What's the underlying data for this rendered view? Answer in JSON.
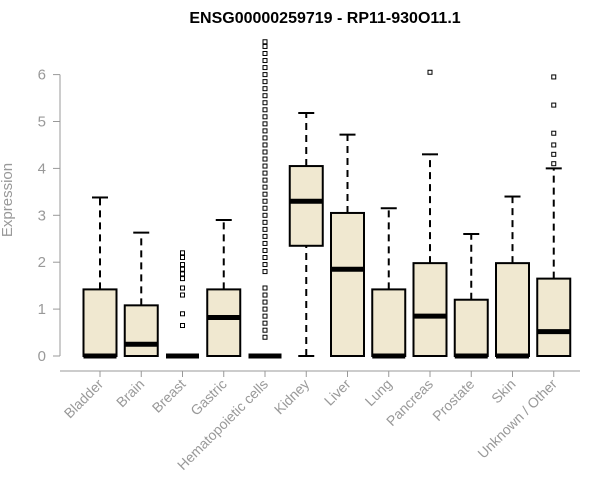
{
  "chart_data": {
    "type": "boxplot",
    "title": "ENSG00000259719 - RP11-930O11.1",
    "xlabel": "",
    "ylabel": "Expression",
    "ylim": [
      0,
      6.5
    ],
    "yticks": [
      0,
      1,
      2,
      3,
      4,
      5,
      6
    ],
    "grid": false,
    "legend": "none",
    "box_fill": "#f0e8d0",
    "box_stroke": "#000000",
    "axis_color": "#999999",
    "categories": [
      "Bladder",
      "Brain",
      "Breast",
      "Gastric",
      "Hematopoietic cells",
      "Kidney",
      "Liver",
      "Lung",
      "Pancreas",
      "Prostate",
      "Skin",
      "Unknown / Other"
    ],
    "boxes": [
      {
        "whisker_low": 0,
        "q1": 0,
        "median": 0,
        "q3": 1.42,
        "whisker_high": 3.38,
        "outliers": []
      },
      {
        "whisker_low": 0,
        "q1": 0,
        "median": 0.25,
        "q3": 1.08,
        "whisker_high": 2.63,
        "outliers": []
      },
      {
        "whisker_low": 0,
        "q1": 0,
        "median": 0,
        "q3": 0,
        "whisker_high": 0,
        "outliers": [
          0.65,
          0.9,
          1.3,
          1.45,
          1.65,
          1.75,
          1.85,
          1.95,
          2.1,
          2.2
        ]
      },
      {
        "whisker_low": 0,
        "q1": 0,
        "median": 0.82,
        "q3": 1.42,
        "whisker_high": 2.9,
        "outliers": []
      },
      {
        "whisker_low": 0,
        "q1": 0,
        "median": 0,
        "q3": 0,
        "whisker_high": 0,
        "outliers": [
          0.4,
          0.55,
          0.7,
          0.85,
          1.0,
          1.15,
          1.3,
          1.45,
          1.8,
          1.95,
          2.1,
          2.25,
          2.4,
          2.55,
          2.7,
          2.85,
          3.0,
          3.15,
          3.3,
          3.45,
          3.6,
          3.75,
          3.9,
          4.05,
          4.2,
          4.35,
          4.5,
          4.65,
          4.8,
          4.95,
          5.1,
          5.25,
          5.4,
          5.55,
          5.7,
          5.85,
          6.0,
          6.15,
          6.3,
          6.45,
          6.6,
          6.7
        ]
      },
      {
        "whisker_low": 0,
        "q1": 2.35,
        "median": 3.3,
        "q3": 4.05,
        "whisker_high": 5.18,
        "outliers": []
      },
      {
        "whisker_low": 0,
        "q1": 0,
        "median": 1.85,
        "q3": 3.05,
        "whisker_high": 4.72,
        "outliers": []
      },
      {
        "whisker_low": 0,
        "q1": 0,
        "median": 0,
        "q3": 1.42,
        "whisker_high": 3.15,
        "outliers": []
      },
      {
        "whisker_low": 0,
        "q1": 0,
        "median": 0.85,
        "q3": 1.98,
        "whisker_high": 4.3,
        "outliers": [
          6.05
        ]
      },
      {
        "whisker_low": 0,
        "q1": 0,
        "median": 0,
        "q3": 1.2,
        "whisker_high": 2.6,
        "outliers": []
      },
      {
        "whisker_low": 0,
        "q1": 0,
        "median": 0,
        "q3": 1.98,
        "whisker_high": 3.4,
        "outliers": []
      },
      {
        "whisker_low": 0,
        "q1": 0,
        "median": 0.52,
        "q3": 1.65,
        "whisker_high": 4.0,
        "outliers": [
          4.1,
          4.3,
          4.5,
          4.75,
          5.35,
          5.95
        ]
      }
    ]
  }
}
